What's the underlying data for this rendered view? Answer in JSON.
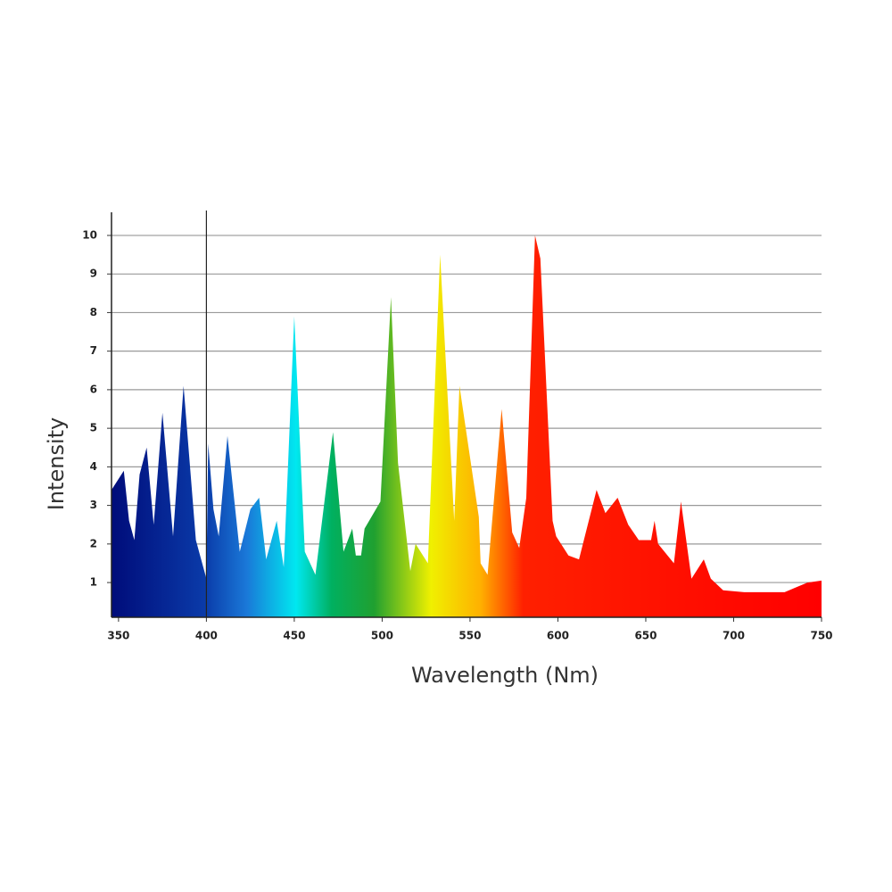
{
  "chart_data": {
    "type": "area",
    "x_label": "Wavelength (Nm)",
    "y_label": "Intensity",
    "x": [
      346,
      353,
      356,
      359,
      362,
      366,
      370,
      375,
      381,
      387,
      394,
      400,
      401,
      404,
      407,
      412,
      419,
      425,
      430,
      434,
      440,
      444,
      450,
      456,
      462,
      472,
      478,
      483,
      485,
      488,
      490,
      499,
      505,
      509,
      516,
      519,
      526,
      533,
      541,
      544,
      555,
      556,
      560,
      568,
      574,
      578,
      582,
      587,
      590,
      597,
      599,
      606,
      612,
      622,
      627,
      634,
      640,
      646,
      653,
      655,
      657,
      666,
      670,
      676,
      683,
      687,
      694,
      706,
      729,
      742,
      750
    ],
    "values": [
      3.4,
      3.9,
      2.6,
      2.1,
      3.8,
      4.5,
      2.5,
      5.4,
      2.2,
      6.1,
      2.1,
      1.1,
      4.6,
      2.9,
      2.2,
      4.8,
      1.8,
      2.9,
      3.2,
      1.6,
      2.6,
      1.4,
      7.9,
      1.8,
      1.2,
      4.9,
      1.8,
      2.4,
      1.7,
      1.7,
      2.4,
      3.1,
      8.4,
      4.1,
      1.3,
      2.0,
      1.5,
      9.5,
      2.6,
      6.1,
      2.7,
      1.5,
      1.2,
      5.5,
      2.3,
      1.9,
      3.2,
      10,
      9.4,
      2.6,
      2.2,
      1.7,
      1.6,
      3.4,
      2.8,
      3.2,
      2.5,
      2.1,
      2.1,
      2.6,
      2.0,
      1.5,
      3.1,
      1.1,
      1.6,
      1.1,
      0.8,
      0.75,
      0.75,
      1.0,
      1.05
    ],
    "xlim": [
      346,
      750
    ],
    "ylim": [
      0.1,
      10.6
    ],
    "xticks": [
      350,
      400,
      450,
      500,
      550,
      600,
      650,
      700,
      750
    ],
    "yticks": [
      1,
      2,
      3,
      4,
      5,
      6,
      7,
      8,
      9,
      10
    ],
    "reference_line_x": 400,
    "grid": true
  }
}
